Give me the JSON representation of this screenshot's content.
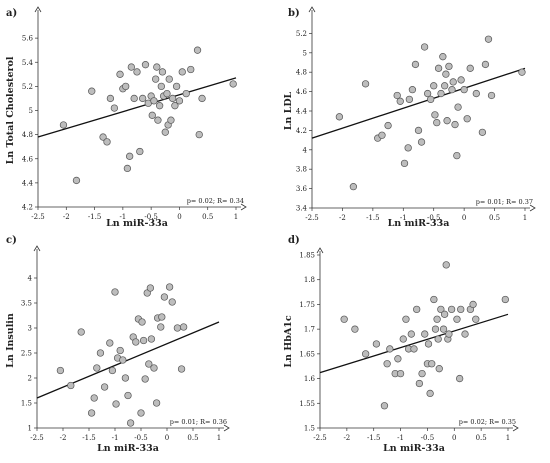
{
  "chart_data": [
    {
      "type": "scatter",
      "panel": "a)",
      "xlabel": "Ln miR-33a",
      "ylabel": "Ln Total Cholesterol",
      "stats": "p= 0.02; R= 0.34",
      "xlim": [
        -2.5,
        1
      ],
      "ylim": [
        4.2,
        5.8
      ],
      "xticks": [
        -2.5,
        -2,
        -1.5,
        -1,
        -0.5,
        0,
        0.5,
        1
      ],
      "yticks": [
        4.2,
        4.4,
        4.6,
        4.8,
        5,
        5.2,
        5.4,
        5.6
      ],
      "point_color": "#bdbdbd",
      "fit": [
        [
          -2.5,
          4.78
        ],
        [
          1,
          5.27
        ]
      ],
      "points": [
        [
          -2.05,
          4.88
        ],
        [
          -1.82,
          4.42
        ],
        [
          -1.55,
          5.16
        ],
        [
          -1.35,
          4.78
        ],
        [
          -1.28,
          4.74
        ],
        [
          -1.22,
          5.1
        ],
        [
          -1.15,
          5.02
        ],
        [
          -1.05,
          5.3
        ],
        [
          -1.0,
          5.18
        ],
        [
          -0.95,
          5.2
        ],
        [
          -0.92,
          4.52
        ],
        [
          -0.88,
          4.62
        ],
        [
          -0.85,
          5.36
        ],
        [
          -0.8,
          5.1
        ],
        [
          -0.75,
          5.32
        ],
        [
          -0.7,
          4.66
        ],
        [
          -0.65,
          5.1
        ],
        [
          -0.6,
          5.38
        ],
        [
          -0.55,
          5.06
        ],
        [
          -0.5,
          5.12
        ],
        [
          -0.48,
          4.96
        ],
        [
          -0.45,
          5.08
        ],
        [
          -0.42,
          5.26
        ],
        [
          -0.4,
          5.36
        ],
        [
          -0.38,
          4.92
        ],
        [
          -0.35,
          5.04
        ],
        [
          -0.32,
          5.2
        ],
        [
          -0.3,
          5.32
        ],
        [
          -0.28,
          5.12
        ],
        [
          -0.25,
          4.82
        ],
        [
          -0.22,
          5.14
        ],
        [
          -0.2,
          4.88
        ],
        [
          -0.18,
          5.26
        ],
        [
          -0.15,
          4.92
        ],
        [
          -0.12,
          5.1
        ],
        [
          -0.08,
          5.04
        ],
        [
          -0.05,
          5.2
        ],
        [
          0.0,
          5.08
        ],
        [
          0.05,
          5.32
        ],
        [
          0.12,
          5.14
        ],
        [
          0.2,
          5.34
        ],
        [
          0.32,
          5.5
        ],
        [
          0.35,
          4.8
        ],
        [
          0.4,
          5.1
        ],
        [
          0.95,
          5.22
        ]
      ]
    },
    {
      "type": "scatter",
      "panel": "b)",
      "xlabel": "Ln miR-33a",
      "ylabel": "Ln LDL",
      "stats": "p= 0.01; R= 0.37",
      "xlim": [
        -2.5,
        1
      ],
      "ylim": [
        3.4,
        5.4
      ],
      "xticks": [
        -2.5,
        -2,
        -1.5,
        -1,
        -0.5,
        0,
        0.5,
        1
      ],
      "yticks": [
        3.4,
        3.6,
        3.8,
        4,
        4.2,
        4.4,
        4.6,
        4.8,
        5,
        5.2
      ],
      "point_color": "#bdbdbd",
      "fit": [
        [
          -2.5,
          4.12
        ],
        [
          1,
          4.84
        ]
      ],
      "points": [
        [
          -2.05,
          4.34
        ],
        [
          -1.82,
          3.62
        ],
        [
          -1.62,
          4.68
        ],
        [
          -1.42,
          4.12
        ],
        [
          -1.35,
          4.15
        ],
        [
          -1.25,
          4.25
        ],
        [
          -1.1,
          4.56
        ],
        [
          -1.05,
          4.5
        ],
        [
          -0.98,
          3.86
        ],
        [
          -0.92,
          4.02
        ],
        [
          -0.9,
          4.52
        ],
        [
          -0.85,
          4.62
        ],
        [
          -0.8,
          4.88
        ],
        [
          -0.75,
          4.2
        ],
        [
          -0.7,
          4.08
        ],
        [
          -0.65,
          5.06
        ],
        [
          -0.6,
          4.58
        ],
        [
          -0.55,
          4.52
        ],
        [
          -0.5,
          4.66
        ],
        [
          -0.48,
          4.36
        ],
        [
          -0.45,
          4.28
        ],
        [
          -0.42,
          4.84
        ],
        [
          -0.38,
          4.58
        ],
        [
          -0.35,
          4.96
        ],
        [
          -0.32,
          4.66
        ],
        [
          -0.3,
          4.78
        ],
        [
          -0.28,
          4.3
        ],
        [
          -0.25,
          4.86
        ],
        [
          -0.2,
          4.62
        ],
        [
          -0.18,
          4.7
        ],
        [
          -0.15,
          4.26
        ],
        [
          -0.12,
          3.94
        ],
        [
          -0.1,
          4.44
        ],
        [
          -0.05,
          4.72
        ],
        [
          0.0,
          4.62
        ],
        [
          0.05,
          4.32
        ],
        [
          0.1,
          4.84
        ],
        [
          0.2,
          4.58
        ],
        [
          0.3,
          4.18
        ],
        [
          0.35,
          4.88
        ],
        [
          0.4,
          5.14
        ],
        [
          0.45,
          4.56
        ],
        [
          0.95,
          4.8
        ]
      ]
    },
    {
      "type": "scatter",
      "panel": "c)",
      "xlabel": "Ln miR-33a",
      "ylabel": "Ln Insulin",
      "stats": "p= 0.01; R= 0.36",
      "xlim": [
        -2.5,
        1
      ],
      "ylim": [
        1,
        4.5
      ],
      "xticks": [
        -2.5,
        -2,
        -1.5,
        -1,
        -0.5,
        0,
        0.5,
        1
      ],
      "yticks": [
        1,
        1.5,
        2,
        2.5,
        3,
        3.5,
        4
      ],
      "point_color": "#bdbdbd",
      "fit": [
        [
          -2.5,
          1.6
        ],
        [
          1,
          3.12
        ]
      ],
      "points": [
        [
          -2.05,
          2.15
        ],
        [
          -1.85,
          1.85
        ],
        [
          -1.65,
          2.92
        ],
        [
          -1.45,
          1.3
        ],
        [
          -1.4,
          1.6
        ],
        [
          -1.35,
          2.2
        ],
        [
          -1.28,
          2.5
        ],
        [
          -1.2,
          1.82
        ],
        [
          -1.1,
          2.7
        ],
        [
          -1.05,
          2.15
        ],
        [
          -1.0,
          3.72
        ],
        [
          -0.98,
          1.48
        ],
        [
          -0.95,
          2.4
        ],
        [
          -0.9,
          2.55
        ],
        [
          -0.85,
          2.36
        ],
        [
          -0.8,
          2.0
        ],
        [
          -0.75,
          1.65
        ],
        [
          -0.7,
          1.1
        ],
        [
          -0.65,
          2.82
        ],
        [
          -0.6,
          2.72
        ],
        [
          -0.55,
          3.18
        ],
        [
          -0.5,
          1.3
        ],
        [
          -0.48,
          3.12
        ],
        [
          -0.45,
          2.75
        ],
        [
          -0.42,
          1.98
        ],
        [
          -0.38,
          3.7
        ],
        [
          -0.35,
          2.28
        ],
        [
          -0.32,
          3.8
        ],
        [
          -0.3,
          2.78
        ],
        [
          -0.25,
          2.2
        ],
        [
          -0.2,
          1.5
        ],
        [
          -0.18,
          3.2
        ],
        [
          -0.12,
          3.02
        ],
        [
          -0.1,
          3.22
        ],
        [
          -0.05,
          3.62
        ],
        [
          0.05,
          3.82
        ],
        [
          0.1,
          3.52
        ],
        [
          0.2,
          3.0
        ],
        [
          0.28,
          2.18
        ],
        [
          0.32,
          3.02
        ]
      ]
    },
    {
      "type": "scatter",
      "panel": "d)",
      "xlabel": "Ln miR-33a",
      "ylabel": "Ln HbA1c",
      "stats": "p= 0.02; R= 0.35",
      "xlim": [
        -2.5,
        1
      ],
      "ylim": [
        1.5,
        1.85
      ],
      "xticks": [
        -2.5,
        -2,
        -1.5,
        -1,
        -0.5,
        0,
        0.5,
        1
      ],
      "yticks": [
        1.5,
        1.55,
        1.6,
        1.65,
        1.7,
        1.75,
        1.8,
        1.85
      ],
      "point_color": "#bdbdbd",
      "fit": [
        [
          -2.5,
          1.612
        ],
        [
          1,
          1.73
        ]
      ],
      "points": [
        [
          -2.05,
          1.72
        ],
        [
          -1.85,
          1.7
        ],
        [
          -1.65,
          1.65
        ],
        [
          -1.45,
          1.67
        ],
        [
          -1.3,
          1.545
        ],
        [
          -1.25,
          1.63
        ],
        [
          -1.2,
          1.66
        ],
        [
          -1.1,
          1.61
        ],
        [
          -1.05,
          1.64
        ],
        [
          -1.0,
          1.61
        ],
        [
          -0.95,
          1.68
        ],
        [
          -0.9,
          1.72
        ],
        [
          -0.85,
          1.66
        ],
        [
          -0.8,
          1.69
        ],
        [
          -0.75,
          1.66
        ],
        [
          -0.7,
          1.74
        ],
        [
          -0.65,
          1.59
        ],
        [
          -0.6,
          1.61
        ],
        [
          -0.55,
          1.69
        ],
        [
          -0.5,
          1.63
        ],
        [
          -0.48,
          1.67
        ],
        [
          -0.45,
          1.57
        ],
        [
          -0.42,
          1.63
        ],
        [
          -0.38,
          1.76
        ],
        [
          -0.35,
          1.7
        ],
        [
          -0.32,
          1.72
        ],
        [
          -0.3,
          1.68
        ],
        [
          -0.28,
          1.62
        ],
        [
          -0.25,
          1.74
        ],
        [
          -0.2,
          1.7
        ],
        [
          -0.18,
          1.73
        ],
        [
          -0.15,
          1.83
        ],
        [
          -0.12,
          1.68
        ],
        [
          -0.1,
          1.69
        ],
        [
          -0.05,
          1.74
        ],
        [
          0.05,
          1.72
        ],
        [
          0.1,
          1.6
        ],
        [
          0.12,
          1.74
        ],
        [
          0.2,
          1.69
        ],
        [
          0.3,
          1.74
        ],
        [
          0.35,
          1.75
        ],
        [
          0.4,
          1.72
        ],
        [
          0.95,
          1.76
        ]
      ]
    }
  ]
}
